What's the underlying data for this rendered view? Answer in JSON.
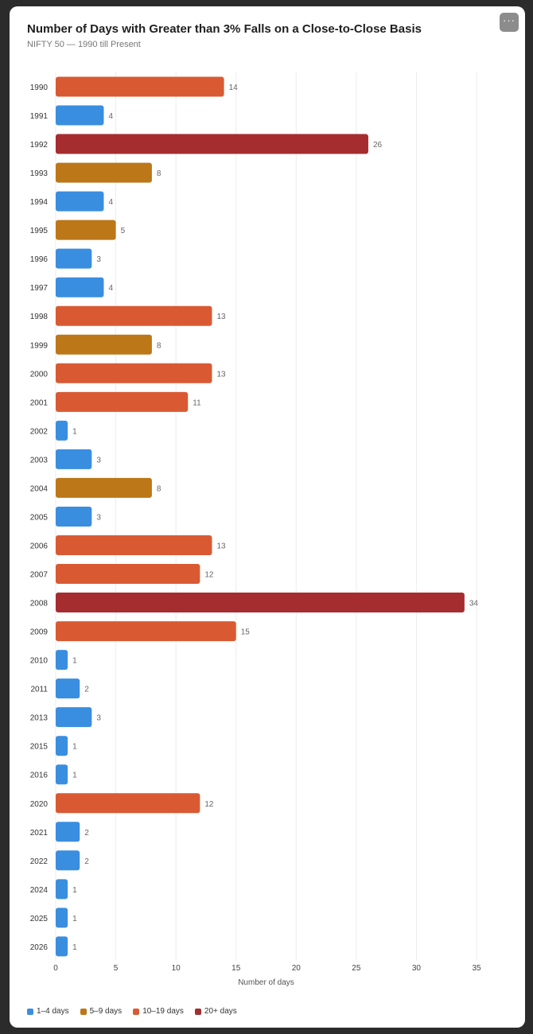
{
  "menu": {
    "icon": "more-horizontal-icon",
    "label": "···"
  },
  "chart_data": {
    "type": "bar",
    "orientation": "horizontal",
    "title": "Number of Days with Greater than 3% Falls on a Close-to-Close Basis",
    "subtitle": "NIFTY 50 — 1990 till Present",
    "xlabel": "Number of days",
    "ylabel": "",
    "xlim": [
      0,
      35
    ],
    "xticks": [
      0,
      5,
      10,
      15,
      20,
      25,
      30,
      35
    ],
    "grid": true,
    "legend_position": "bottom-left",
    "categories": [
      "1990",
      "1991",
      "1992",
      "1993",
      "1994",
      "1995",
      "1996",
      "1997",
      "1998",
      "1999",
      "2000",
      "2001",
      "2002",
      "2003",
      "2004",
      "2005",
      "2006",
      "2007",
      "2008",
      "2009",
      "2010",
      "2011",
      "2013",
      "2015",
      "2016",
      "2020",
      "2021",
      "2022",
      "2024",
      "2025",
      "2026"
    ],
    "values": [
      14,
      4,
      26,
      8,
      4,
      5,
      3,
      4,
      13,
      8,
      13,
      11,
      1,
      3,
      8,
      3,
      13,
      12,
      34,
      15,
      1,
      2,
      3,
      1,
      1,
      12,
      2,
      2,
      1,
      1,
      1
    ],
    "color_groups": [
      {
        "label": "1–4 days",
        "min": 1,
        "max": 4,
        "color": "#3a8ee0"
      },
      {
        "label": "5–9 days",
        "min": 5,
        "max": 9,
        "color": "#bc7718"
      },
      {
        "label": "10–19 days",
        "min": 10,
        "max": 19,
        "color": "#d95a32"
      },
      {
        "label": "20+ days",
        "min": 20,
        "max": 9999,
        "color": "#a52d2f"
      }
    ]
  }
}
